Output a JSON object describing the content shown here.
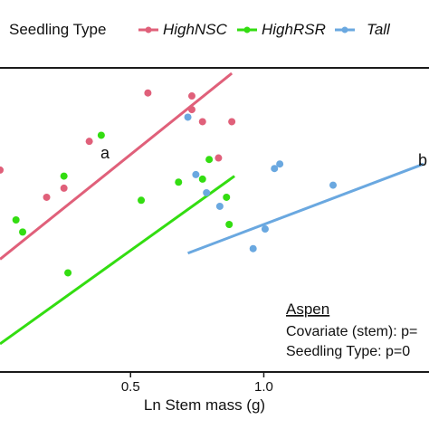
{
  "chart_data": {
    "type": "scatter",
    "legend": {
      "title": "Seedling Type",
      "placement": "top",
      "entries": [
        {
          "label": "HighNSC",
          "color": "#e0607a"
        },
        {
          "label": "HighRSR",
          "color": "#33dd11"
        },
        {
          "label": "Tall",
          "color": "#6aa8e0"
        }
      ]
    },
    "xlabel": "Ln Stem mass (g)",
    "ylabel": "",
    "xlim": [
      0.01,
      1.62
    ],
    "ylim": [
      0,
      1
    ],
    "grid": false,
    "x_ticks": [
      {
        "value": 0.5,
        "label": "0.5"
      },
      {
        "value": 1.0,
        "label": "1.0"
      }
    ],
    "series": [
      {
        "name": "HighNSC",
        "color": "#e0607a",
        "points": [
          [
            0.01,
            0.665
          ],
          [
            0.185,
            0.575
          ],
          [
            0.25,
            0.605
          ],
          [
            0.345,
            0.76
          ],
          [
            0.565,
            0.92
          ],
          [
            0.73,
            0.91
          ],
          [
            0.73,
            0.865
          ],
          [
            0.77,
            0.825
          ],
          [
            0.83,
            0.705
          ],
          [
            0.88,
            0.825
          ]
        ],
        "fit": [
          [
            0.01,
            0.37
          ],
          [
            0.88,
            0.985
          ]
        ]
      },
      {
        "name": "HighRSR",
        "color": "#33dd11",
        "points": [
          [
            0.25,
            0.645
          ],
          [
            0.265,
            0.325
          ],
          [
            0.07,
            0.5
          ],
          [
            0.095,
            0.46
          ],
          [
            0.39,
            0.78
          ],
          [
            0.54,
            0.565
          ],
          [
            0.68,
            0.625
          ],
          [
            0.77,
            0.635
          ],
          [
            0.795,
            0.7
          ],
          [
            0.86,
            0.575
          ],
          [
            0.87,
            0.485
          ]
        ],
        "fit": [
          [
            0.01,
            0.09
          ],
          [
            0.89,
            0.645
          ]
        ]
      },
      {
        "name": "Tall",
        "color": "#6aa8e0",
        "points": [
          [
            0.715,
            0.84
          ],
          [
            0.745,
            0.65
          ],
          [
            0.785,
            0.59
          ],
          [
            0.835,
            0.545
          ],
          [
            0.96,
            0.405
          ],
          [
            1.005,
            0.47
          ],
          [
            1.04,
            0.67
          ],
          [
            1.06,
            0.685
          ],
          [
            1.26,
            0.615
          ]
        ],
        "fit": [
          [
            0.715,
            0.39
          ],
          [
            1.6,
            0.685
          ]
        ]
      }
    ],
    "annotations": [
      {
        "text": "a"
      },
      {
        "text": "b"
      }
    ],
    "stats_box": {
      "title": "Aspen",
      "lines": [
        "Covariate (stem): p=",
        "Seedling Type: p=0"
      ]
    }
  }
}
